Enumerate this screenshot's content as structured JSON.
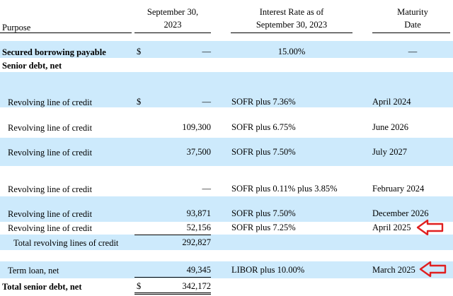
{
  "header": {
    "purpose": "Purpose",
    "sep_line1": "September 30,",
    "sep_line2": "2023",
    "rate_line1": "Interest Rate as of",
    "rate_line2": "September 30, 2023",
    "mat_line1": "Maturity",
    "mat_line2": "Date"
  },
  "secured": {
    "label": "Secured borrowing payable",
    "dollar": "$",
    "amount": "—",
    "rate": "15.00%",
    "maturity": "—"
  },
  "senior_heading": "Senior debt, net",
  "revolving_rows": [
    {
      "label": "Revolving line of credit",
      "dollar": "$",
      "amount": "—",
      "rate": "SOFR plus 7.36%",
      "maturity": "April 2024"
    },
    {
      "label": "Revolving line of credit",
      "dollar": "",
      "amount": "109,300",
      "rate": "SOFR plus 6.75%",
      "maturity": "June 2026"
    },
    {
      "label": "Revolving line of credit",
      "dollar": "",
      "amount": "37,500",
      "rate": "SOFR plus 7.50%",
      "maturity": "July 2027"
    },
    {
      "label": "Revolving line of credit",
      "dollar": "",
      "amount": "—",
      "rate": "SOFR plus 0.11% plus 3.85%",
      "maturity": "February 2024"
    },
    {
      "label": "Revolving line of credit",
      "dollar": "",
      "amount": "93,871",
      "rate": "SOFR plus 7.50%",
      "maturity": "December 2026"
    },
    {
      "label": "Revolving line of credit",
      "dollar": "",
      "amount": "52,156",
      "rate": "SOFR plus 7.25%",
      "maturity": "April 2025"
    }
  ],
  "total_revolving": {
    "label": "Total revolving lines of credit",
    "amount": "292,827"
  },
  "term_loan": {
    "label": "Term loan, net",
    "amount": "49,345",
    "rate": "LIBOR plus 10.00%",
    "maturity": "March 2025"
  },
  "total_senior": {
    "label": "Total senior debt, net",
    "dollar": "$",
    "amount": "342,172"
  },
  "annotation_color": "#e02020"
}
